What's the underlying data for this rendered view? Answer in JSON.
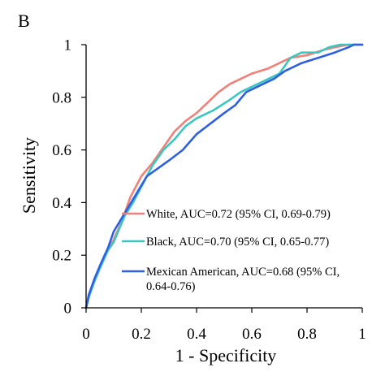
{
  "panel_label": "B",
  "colors": {
    "white": "#f08078",
    "black": "#3cc6c0",
    "mexican": "#2e5fe0",
    "axis": "#000000"
  },
  "chart_data": {
    "type": "line",
    "xlabel": "1 - Specificity",
    "ylabel": "Sensitivity",
    "xlim": [
      0,
      1
    ],
    "ylim": [
      0,
      1
    ],
    "x_ticks": [
      "0",
      "0.2",
      "0.4",
      "0.6",
      "0.8",
      "1"
    ],
    "y_ticks": [
      "0",
      "0.2",
      "0.4",
      "0.6",
      "0.8",
      "1"
    ],
    "grid": false,
    "legend_position": "bottom-right",
    "series": [
      {
        "key": "white",
        "name": "White, AUC=0.72 (95% CI, 0.69-0.79)",
        "name_lines": [
          "White, AUC=0.72 (95% CI, 0.69-0.79)"
        ],
        "points": [
          [
            0,
            0
          ],
          [
            0.01,
            0.05
          ],
          [
            0.03,
            0.1
          ],
          [
            0.05,
            0.15
          ],
          [
            0.07,
            0.2
          ],
          [
            0.1,
            0.26
          ],
          [
            0.13,
            0.33
          ],
          [
            0.16,
            0.42
          ],
          [
            0.2,
            0.5
          ],
          [
            0.24,
            0.55
          ],
          [
            0.28,
            0.61
          ],
          [
            0.32,
            0.67
          ],
          [
            0.36,
            0.71
          ],
          [
            0.4,
            0.74
          ],
          [
            0.44,
            0.78
          ],
          [
            0.48,
            0.82
          ],
          [
            0.52,
            0.85
          ],
          [
            0.56,
            0.87
          ],
          [
            0.6,
            0.89
          ],
          [
            0.66,
            0.91
          ],
          [
            0.7,
            0.93
          ],
          [
            0.74,
            0.95
          ],
          [
            0.8,
            0.96
          ],
          [
            0.86,
            0.98
          ],
          [
            0.9,
            0.99
          ],
          [
            0.95,
            1
          ],
          [
            1,
            1
          ]
        ]
      },
      {
        "key": "black",
        "name": "Black, AUC=0.70 (95% CI, 0.65-0.77)",
        "name_lines": [
          "Black, AUC=0.70 (95% CI, 0.65-0.77)"
        ],
        "points": [
          [
            0,
            0
          ],
          [
            0.01,
            0.04
          ],
          [
            0.03,
            0.1
          ],
          [
            0.05,
            0.15
          ],
          [
            0.08,
            0.22
          ],
          [
            0.1,
            0.25
          ],
          [
            0.12,
            0.3
          ],
          [
            0.14,
            0.35
          ],
          [
            0.17,
            0.4
          ],
          [
            0.2,
            0.46
          ],
          [
            0.24,
            0.54
          ],
          [
            0.28,
            0.6
          ],
          [
            0.32,
            0.64
          ],
          [
            0.36,
            0.69
          ],
          [
            0.4,
            0.72
          ],
          [
            0.46,
            0.75
          ],
          [
            0.52,
            0.79
          ],
          [
            0.56,
            0.82
          ],
          [
            0.6,
            0.84
          ],
          [
            0.64,
            0.86
          ],
          [
            0.7,
            0.89
          ],
          [
            0.74,
            0.95
          ],
          [
            0.78,
            0.97
          ],
          [
            0.84,
            0.97
          ],
          [
            0.88,
            0.99
          ],
          [
            0.92,
            1
          ],
          [
            1,
            1
          ]
        ]
      },
      {
        "key": "mexican",
        "name": "Mexican American, AUC=0.68 (95% CI, 0.64-0.76)",
        "name_lines": [
          "Mexican American, AUC=0.68 (95% CI,",
          "0.64-0.76)"
        ],
        "points": [
          [
            0,
            0
          ],
          [
            0.01,
            0.05
          ],
          [
            0.03,
            0.11
          ],
          [
            0.05,
            0.16
          ],
          [
            0.08,
            0.23
          ],
          [
            0.1,
            0.29
          ],
          [
            0.14,
            0.36
          ],
          [
            0.18,
            0.43
          ],
          [
            0.22,
            0.5
          ],
          [
            0.26,
            0.53
          ],
          [
            0.3,
            0.56
          ],
          [
            0.35,
            0.6
          ],
          [
            0.4,
            0.66
          ],
          [
            0.45,
            0.7
          ],
          [
            0.5,
            0.74
          ],
          [
            0.54,
            0.77
          ],
          [
            0.58,
            0.82
          ],
          [
            0.62,
            0.84
          ],
          [
            0.68,
            0.87
          ],
          [
            0.72,
            0.9
          ],
          [
            0.78,
            0.93
          ],
          [
            0.84,
            0.95
          ],
          [
            0.9,
            0.97
          ],
          [
            0.95,
            0.99
          ],
          [
            0.97,
            1
          ],
          [
            1,
            1
          ]
        ]
      }
    ]
  }
}
